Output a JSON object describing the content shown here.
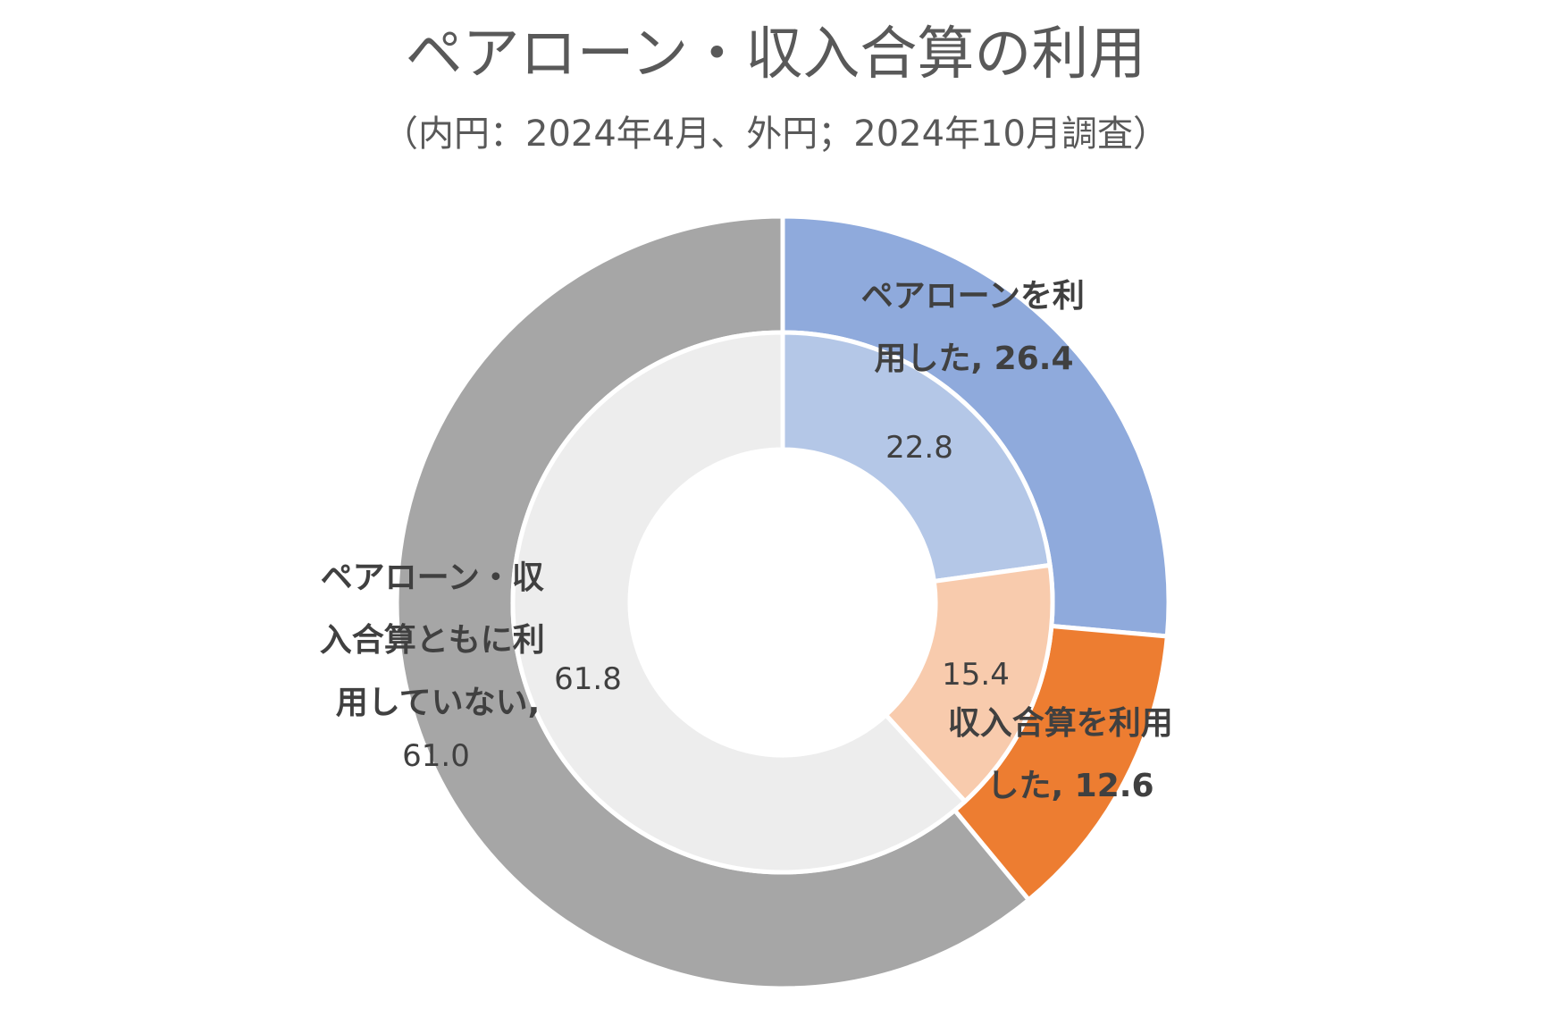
{
  "chart_data": {
    "type": "pie",
    "title": "ペアローン・収入合算の利用",
    "subtitle": "（内円：2024年4月、外円；2024年10月調査）",
    "categories": [
      "ペアローンを利用した",
      "収入合算を利用した",
      "ペアローン・収入合算ともに利用していない"
    ],
    "series": [
      {
        "ring": "outer",
        "values": [
          26.4,
          12.6,
          61.0
        ],
        "colors": [
          "#8FAADC",
          "#ED7D31",
          "#A6A6A6"
        ],
        "labels": [
          "26.4",
          "12.6",
          "61.0"
        ]
      },
      {
        "ring": "inner",
        "values": [
          22.8,
          15.4,
          61.8
        ],
        "colors": [
          "#B4C7E7",
          "#F8CBAD",
          "#EDEDED"
        ],
        "labels": [
          "22.8",
          "15.4",
          "61.8"
        ]
      }
    ],
    "category_label_lines": [
      [
        "ペアローンを利",
        "用した, 26.4"
      ],
      [
        "収入合算を利用",
        "した, 12.6"
      ],
      [
        "ペアローン・収",
        "入合算ともに利",
        "用していない,"
      ]
    ],
    "legend": "none"
  }
}
